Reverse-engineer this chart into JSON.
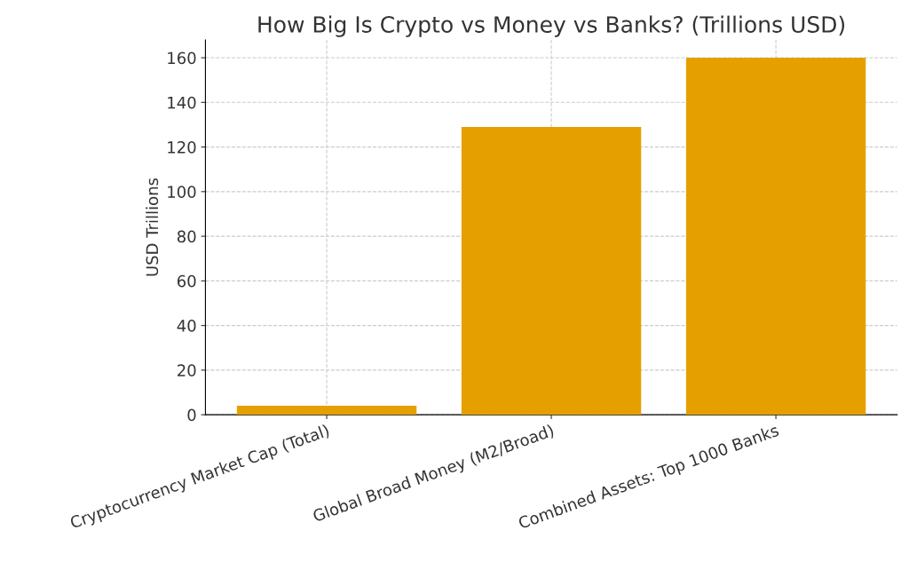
{
  "chart_data": {
    "type": "bar",
    "title": "How Big Is Crypto vs Money vs Banks? (Trillions USD)",
    "ylabel": "USD Trillions",
    "categories": [
      "Cryptocurrency Market Cap (Total)",
      "Global Broad Money (M2/Broad)",
      "Combined Assets: Top 1000 Banks"
    ],
    "values": [
      4,
      129,
      160
    ],
    "color": "#e5a000",
    "ylim": [
      0,
      168
    ],
    "yticks": [
      0,
      20,
      40,
      60,
      80,
      100,
      120,
      140,
      160
    ],
    "grid": true
  }
}
